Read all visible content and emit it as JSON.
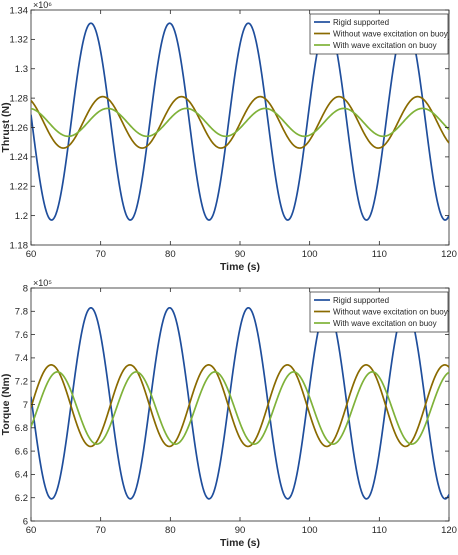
{
  "chart_data": [
    {
      "type": "line",
      "xlabel": "Time (s)",
      "ylabel": "Thrust (N)",
      "exponent_label": "×10⁶",
      "xlim": [
        60,
        120
      ],
      "ylim": [
        1.18,
        1.34
      ],
      "xticks": [
        "60",
        "70",
        "80",
        "90",
        "100",
        "110",
        "120"
      ],
      "yticks": [
        "1.18",
        "1.2",
        "1.22",
        "1.24",
        "1.26",
        "1.28",
        "1.3",
        "1.32",
        "1.34"
      ],
      "legend_position": "top-right",
      "series": [
        {
          "name": "Rigid supported",
          "color": "#1f4e9c",
          "model": {
            "mean": 1.264,
            "amplitude": 0.067,
            "period": 11.3,
            "peak_time": 68.6
          }
        },
        {
          "name": "Without wave excitation on buoy",
          "color": "#8a6a00",
          "model": {
            "mean": 1.2635,
            "amplitude": 0.0175,
            "period": 11.3,
            "peak_time": 70.3
          }
        },
        {
          "name": "With wave excitation on buoy",
          "color": "#7fb239",
          "model": {
            "mean": 1.2635,
            "amplitude": 0.0095,
            "period": 11.3,
            "peak_time": 71.0
          }
        }
      ]
    },
    {
      "type": "line",
      "xlabel": "Time (s)",
      "ylabel": "Torque (Nm)",
      "exponent_label": "×10⁵",
      "xlim": [
        60,
        120
      ],
      "ylim": [
        6,
        8
      ],
      "xticks": [
        "60",
        "70",
        "80",
        "90",
        "100",
        "110",
        "120"
      ],
      "yticks": [
        "6",
        "6.2",
        "6.4",
        "6.6",
        "6.8",
        "7",
        "7.2",
        "7.4",
        "7.6",
        "7.8",
        "8"
      ],
      "legend_position": "top-right",
      "series": [
        {
          "name": "Rigid supported",
          "color": "#1f4e9c",
          "model": {
            "mean": 7.01,
            "amplitude": 0.82,
            "period": 11.3,
            "peak_time": 68.6
          }
        },
        {
          "name": "Without wave excitation on buoy",
          "color": "#8a6a00",
          "model": {
            "mean": 6.99,
            "amplitude": 0.35,
            "period": 11.3,
            "peak_time": 62.9
          }
        },
        {
          "name": "With wave excitation on buoy",
          "color": "#7fb239",
          "model": {
            "mean": 6.97,
            "amplitude": 0.31,
            "period": 11.3,
            "peak_time": 63.8
          }
        }
      ]
    }
  ]
}
